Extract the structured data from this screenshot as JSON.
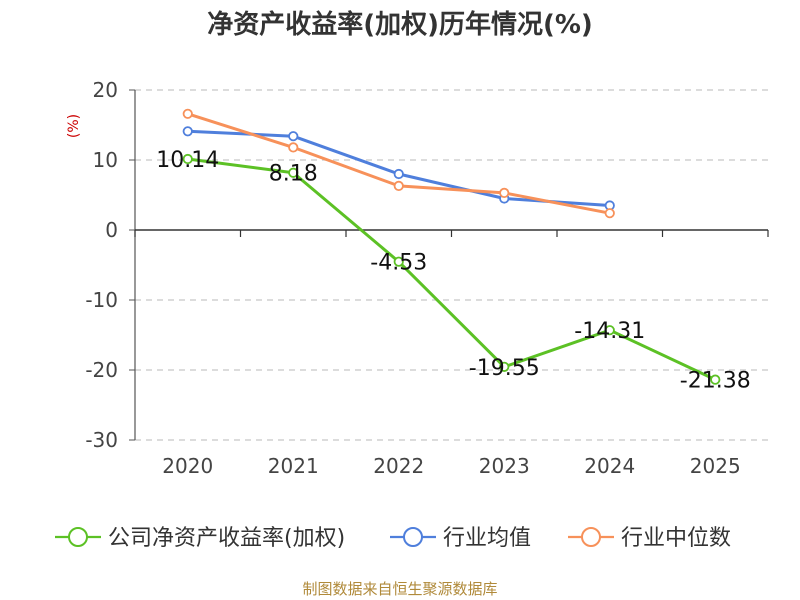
{
  "chart_data": {
    "type": "line",
    "title": "净资产收益率(加权)历年情况(%)",
    "ylabel": "(%)",
    "xlabel": "",
    "categories": [
      "2020",
      "2021",
      "2022",
      "2023",
      "2024",
      "2025"
    ],
    "ylim": [
      -30,
      20
    ],
    "yticks": [
      20,
      10,
      0,
      -10,
      -20,
      -30
    ],
    "grid": true,
    "legend": "bottom",
    "series": [
      {
        "name": "公司净资产收益率(加权)",
        "color": "#5cc125",
        "values": [
          10.14,
          8.18,
          -4.53,
          -19.55,
          -14.31,
          -21.38
        ],
        "labels": [
          "10.14",
          "8.18",
          "-4.53",
          "-19.55",
          "-14.31",
          "-21.38"
        ]
      },
      {
        "name": "行业均值",
        "color": "#4f7fdc",
        "values": [
          14.1,
          13.4,
          8.0,
          4.5,
          3.5,
          null
        ]
      },
      {
        "name": "行业中位数",
        "color": "#f7915a",
        "values": [
          16.6,
          11.8,
          6.3,
          5.3,
          2.4,
          null
        ]
      }
    ]
  },
  "footer": {
    "source": "制图数据来自恒生聚源数据库"
  }
}
